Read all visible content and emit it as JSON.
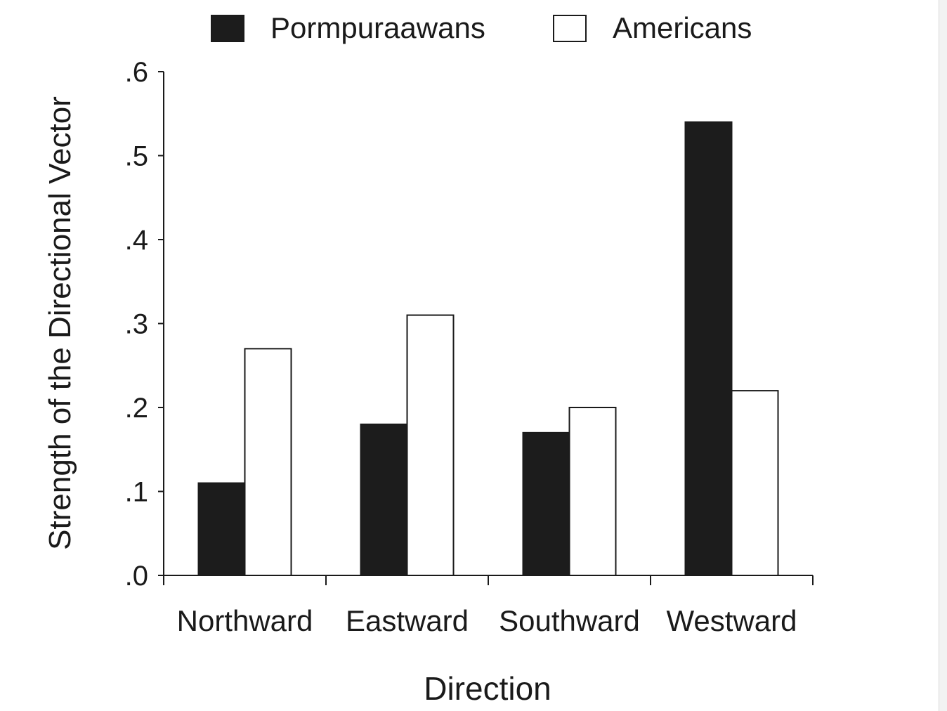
{
  "chart_data": {
    "type": "bar",
    "title": "",
    "xlabel": "Direction",
    "ylabel": "Strength of the Directional Vector",
    "categories": [
      "Northward",
      "Eastward",
      "Southward",
      "Westward"
    ],
    "series": [
      {
        "name": "Pormpuraawans",
        "values": [
          0.11,
          0.18,
          0.17,
          0.54
        ],
        "color": "#1c1c1c"
      },
      {
        "name": "Americans",
        "values": [
          0.27,
          0.31,
          0.2,
          0.22
        ],
        "color": "#ffffff"
      }
    ],
    "ylim": [
      0,
      0.6
    ],
    "yticks": [
      ".0",
      ".1",
      ".2",
      ".3",
      ".4",
      ".5",
      ".6"
    ],
    "ytick_values": [
      0,
      0.1,
      0.2,
      0.3,
      0.4,
      0.5,
      0.6
    ],
    "grid": false,
    "legend_position": "top-center",
    "bar_outline_color": "#1a1a1a"
  }
}
